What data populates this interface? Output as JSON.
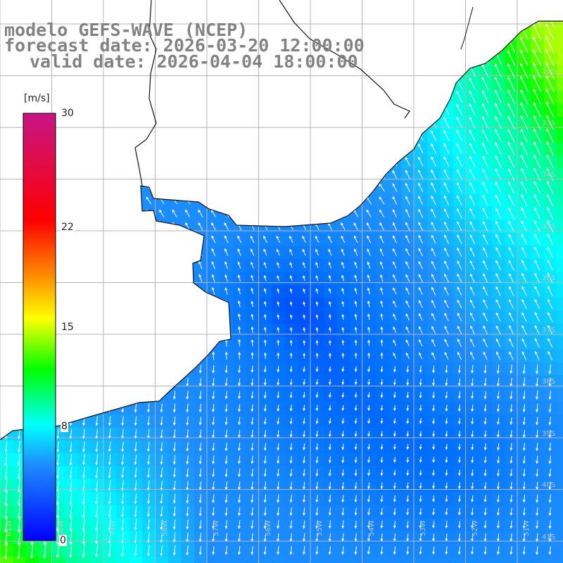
{
  "title": {
    "line1": "modelo GEFS-WAVE (NCEP)",
    "line2": "forecast date: 2026-03-20 12:00:00",
    "line3": "valid date: 2026-04-04 18:00:00"
  },
  "colorbar": {
    "unit": "[m/s]",
    "ticks": [
      "30",
      "22",
      "15",
      "8",
      "0"
    ],
    "tick_values": [
      30,
      22,
      15,
      8,
      0
    ],
    "range": [
      0,
      30
    ],
    "colors": [
      "#0000ff",
      "#1e90ff",
      "#00ffff",
      "#00ff00",
      "#ffff00",
      "#ff8c00",
      "#ff0000",
      "#c71585"
    ]
  },
  "lat_labels": [
    "32S",
    "33S",
    "34S",
    "35S",
    "36S",
    "37S",
    "38S",
    "39S",
    "40S",
    "41S"
  ],
  "lon_labels": [
    "61W",
    "60W",
    "59W",
    "58W",
    "57W",
    "56W",
    "55W",
    "54W",
    "53W",
    "52W",
    "51W"
  ],
  "map_extent": {
    "lon": [
      -62,
      -51
    ],
    "lat": [
      -41.5,
      -31
    ]
  },
  "colors": {
    "land": "#ffffff",
    "grid": "#b4b4b4",
    "coast": "#111111",
    "arrow": "#ffffff",
    "title": "#828282"
  }
}
